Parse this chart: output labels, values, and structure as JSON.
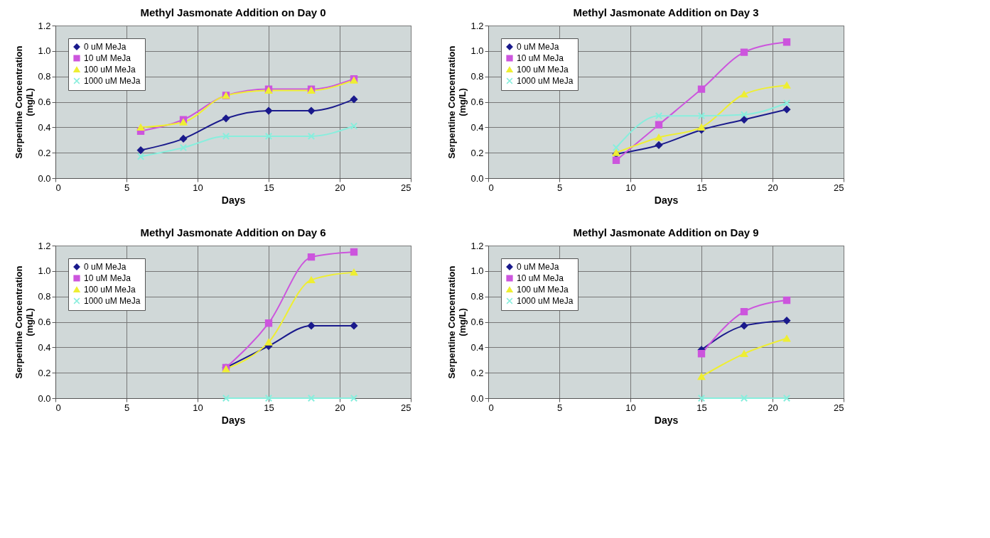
{
  "chart_data": [
    {
      "type": "line",
      "title": "Methyl Jasmonate Addition on Day 0",
      "xlabel": "Days",
      "ylabel": "Serpentine Concentration\n(mg/L)",
      "x": [
        6,
        9,
        12,
        15,
        18,
        21
      ],
      "xlim": [
        0,
        25
      ],
      "xticks": [
        0,
        5,
        10,
        15,
        20,
        25
      ],
      "ylim": [
        0,
        1.2
      ],
      "yticks": [
        {
          "value": 0,
          "label": "0.0"
        },
        {
          "value": 0.2,
          "label": "0.2"
        },
        {
          "value": 0.4,
          "label": "0.4"
        },
        {
          "value": 0.6,
          "label": "0.6"
        },
        {
          "value": 0.8,
          "label": "0.8"
        },
        {
          "value": 1.0,
          "label": "1.0"
        },
        {
          "value": 1.2,
          "label": "1.2"
        }
      ],
      "grid": true,
      "legend": "top left",
      "series": [
        {
          "name": "0 uM MeJa",
          "color": "#1a1a8c",
          "marker": "diamond",
          "values": [
            0.22,
            0.31,
            0.47,
            0.53,
            0.53,
            0.62
          ]
        },
        {
          "name": "10 uM MeJa",
          "color": "#cc55dd",
          "marker": "square",
          "values": [
            0.37,
            0.46,
            0.65,
            0.7,
            0.7,
            0.78
          ]
        },
        {
          "name": "100 uM MeJa",
          "color": "#eeee33",
          "marker": "triangle",
          "values": [
            0.4,
            0.44,
            0.65,
            0.69,
            0.69,
            0.77
          ]
        },
        {
          "name": "1000 uM MeJa",
          "color": "#88eedd",
          "marker": "cross",
          "values": [
            0.17,
            0.24,
            0.33,
            0.33,
            0.33,
            0.41
          ]
        }
      ]
    },
    {
      "type": "line",
      "title": "Methyl Jasmonate Addition on Day 3",
      "xlabel": "Days",
      "ylabel": "Serpentine Concentration\n(mg/L)",
      "x": [
        9,
        12,
        15,
        18,
        21
      ],
      "xlim": [
        0,
        25
      ],
      "xticks": [
        0,
        5,
        10,
        15,
        20,
        25
      ],
      "ylim": [
        0,
        1.2
      ],
      "yticks": [
        {
          "value": 0,
          "label": "0.0"
        },
        {
          "value": 0.2,
          "label": "0.2"
        },
        {
          "value": 0.4,
          "label": "0.4"
        },
        {
          "value": 0.6,
          "label": "0.6"
        },
        {
          "value": 0.8,
          "label": "0.8"
        },
        {
          "value": 1.0,
          "label": "1.0"
        },
        {
          "value": 1.2,
          "label": "1.2"
        }
      ],
      "grid": true,
      "legend": "top left",
      "series": [
        {
          "name": "0 uM MeJa",
          "color": "#1a1a8c",
          "marker": "diamond",
          "values": [
            0.19,
            0.26,
            0.38,
            0.46,
            0.54
          ]
        },
        {
          "name": "10 uM MeJa",
          "color": "#cc55dd",
          "marker": "square",
          "values": [
            0.14,
            0.42,
            0.7,
            0.99,
            1.07
          ]
        },
        {
          "name": "100 uM MeJa",
          "color": "#eeee33",
          "marker": "triangle",
          "values": [
            0.2,
            0.32,
            0.4,
            0.66,
            0.73
          ]
        },
        {
          "name": "1000 uM MeJa",
          "color": "#88eedd",
          "marker": "cross",
          "values": [
            0.24,
            0.49,
            0.49,
            0.5,
            0.59
          ]
        }
      ]
    },
    {
      "type": "line",
      "title": "Methyl Jasmonate Addition on Day 6",
      "xlabel": "Days",
      "ylabel": "Serpentine Concentration\n(mg/L)",
      "x": [
        12,
        15,
        18,
        21
      ],
      "xlim": [
        0,
        25
      ],
      "xticks": [
        0,
        5,
        10,
        15,
        20,
        25
      ],
      "ylim": [
        0,
        1.2
      ],
      "yticks": [
        {
          "value": 0,
          "label": "0.0"
        },
        {
          "value": 0.2,
          "label": "0.2"
        },
        {
          "value": 0.4,
          "label": "0.4"
        },
        {
          "value": 0.6,
          "label": "0.6"
        },
        {
          "value": 0.8,
          "label": "0.8"
        },
        {
          "value": 1.0,
          "label": "1.0"
        },
        {
          "value": 1.2,
          "label": "1.2"
        }
      ],
      "grid": true,
      "legend": "top left",
      "series": [
        {
          "name": "0 uM MeJa",
          "color": "#1a1a8c",
          "marker": "diamond",
          "values": [
            0.24,
            0.41,
            0.57,
            0.57
          ]
        },
        {
          "name": "10 uM MeJa",
          "color": "#cc55dd",
          "marker": "square",
          "values": [
            0.24,
            0.59,
            1.11,
            1.15
          ]
        },
        {
          "name": "100 uM MeJa",
          "color": "#eeee33",
          "marker": "triangle",
          "values": [
            0.23,
            0.44,
            0.93,
            0.99
          ]
        },
        {
          "name": "1000 uM MeJa",
          "color": "#88eedd",
          "marker": "cross",
          "values": [
            0,
            0,
            0,
            0
          ]
        }
      ]
    },
    {
      "type": "line",
      "title": "Methyl Jasmonate Addition on Day 9",
      "xlabel": "Days",
      "ylabel": "Serpentine Concentration\n(mg/L)",
      "x": [
        15,
        18,
        21
      ],
      "xlim": [
        0,
        25
      ],
      "xticks": [
        0,
        5,
        10,
        15,
        20,
        25
      ],
      "ylim": [
        0,
        1.2
      ],
      "yticks": [
        {
          "value": 0,
          "label": "0.0"
        },
        {
          "value": 0.2,
          "label": "0.2"
        },
        {
          "value": 0.4,
          "label": "0.4"
        },
        {
          "value": 0.6,
          "label": "0.6"
        },
        {
          "value": 0.8,
          "label": "0.8"
        },
        {
          "value": 1.0,
          "label": "1.0"
        },
        {
          "value": 1.2,
          "label": "1.2"
        }
      ],
      "grid": true,
      "legend": "top left",
      "series": [
        {
          "name": "0 uM MeJa",
          "color": "#1a1a8c",
          "marker": "diamond",
          "values": [
            0.38,
            0.57,
            0.61
          ]
        },
        {
          "name": "10 uM MeJa",
          "color": "#cc55dd",
          "marker": "square",
          "values": [
            0.35,
            0.68,
            0.77
          ]
        },
        {
          "name": "100 uM MeJa",
          "color": "#eeee33",
          "marker": "triangle",
          "values": [
            0.17,
            0.35,
            0.47
          ]
        },
        {
          "name": "1000 uM MeJa",
          "color": "#88eedd",
          "marker": "cross",
          "values": [
            0,
            0,
            0
          ]
        }
      ]
    }
  ]
}
